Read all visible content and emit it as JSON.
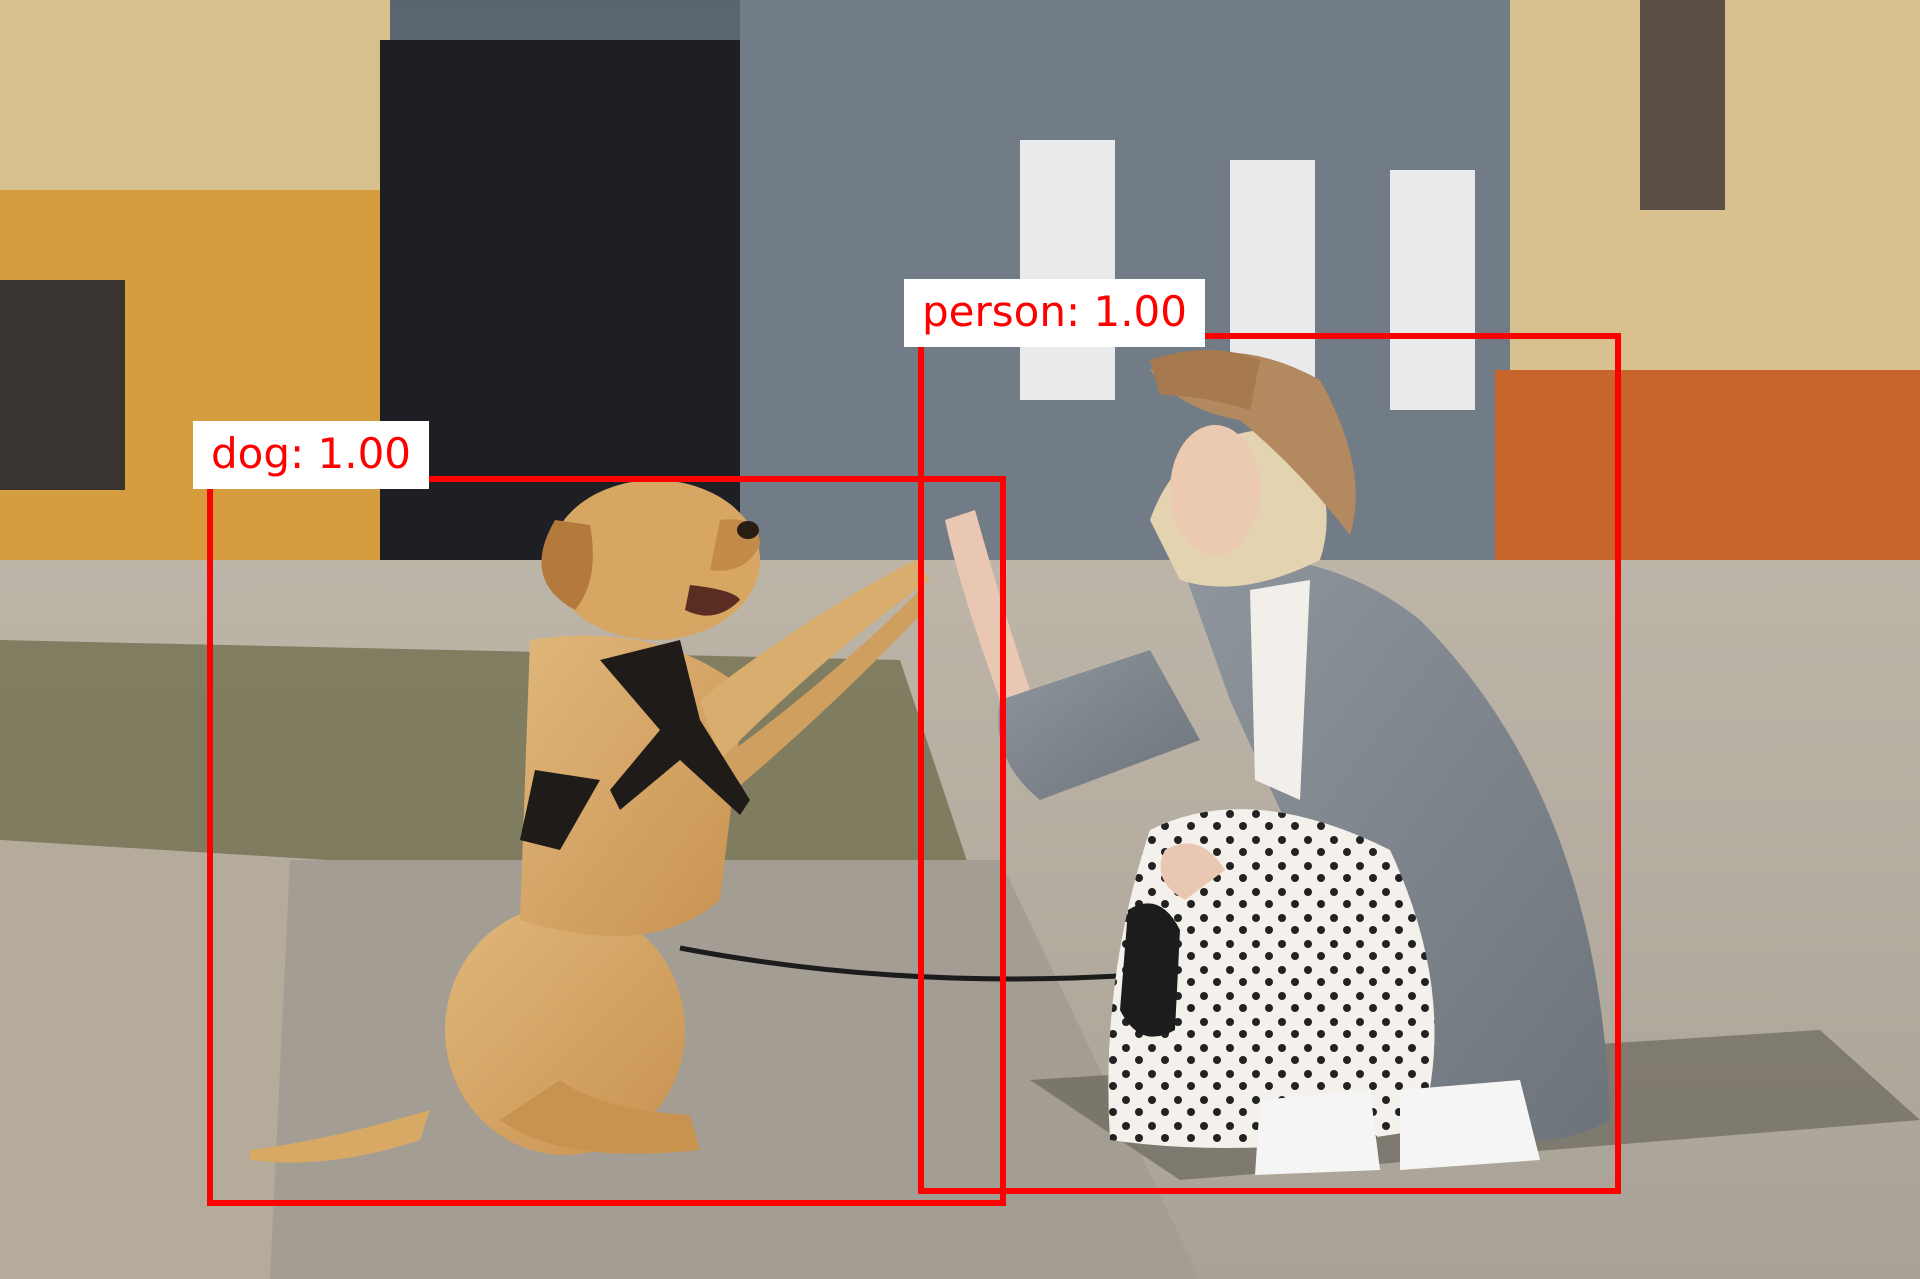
{
  "detections": [
    {
      "label": "dog",
      "score": "1.00",
      "text": "dog: 1.00"
    },
    {
      "label": "person",
      "score": "1.00",
      "text": "person: 1.00"
    }
  ],
  "colors": {
    "box": "#ff0000",
    "label_bg": "#ffffff",
    "label_text": "#ff0000"
  }
}
